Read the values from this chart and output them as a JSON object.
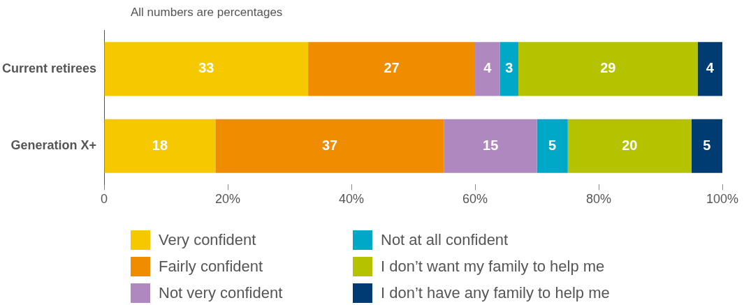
{
  "chart_data": {
    "type": "bar",
    "orientation": "horizontal",
    "stacked": true,
    "subtitle": "All numbers are percentages",
    "categories": [
      "Current retirees",
      "Generation X+"
    ],
    "series": [
      {
        "name": "Very confident",
        "color": "#f5c800",
        "values": [
          33,
          18
        ]
      },
      {
        "name": "Fairly confident",
        "color": "#f08c00",
        "values": [
          27,
          37
        ]
      },
      {
        "name": "Not very confident",
        "color": "#b088c0",
        "values": [
          4,
          15
        ]
      },
      {
        "name": "Not at all confident",
        "color": "#00a8c8",
        "values": [
          3,
          5
        ]
      },
      {
        "name": "I don’t want my family to help me",
        "color": "#b5c200",
        "values": [
          29,
          20
        ]
      },
      {
        "name": "I don’t have any family to help me",
        "color": "#003c71",
        "values": [
          4,
          5
        ]
      }
    ],
    "xlim": [
      0,
      100
    ],
    "xticks": [
      0,
      {
        "value": 20,
        "label": "20%"
      },
      {
        "value": 40,
        "label": "40%"
      },
      {
        "value": 60,
        "label": "60%"
      },
      {
        "value": 80,
        "label": "80%"
      },
      {
        "value": 100,
        "label": "100%"
      }
    ],
    "data_labels": true,
    "grid": false,
    "legend": "bottom"
  }
}
